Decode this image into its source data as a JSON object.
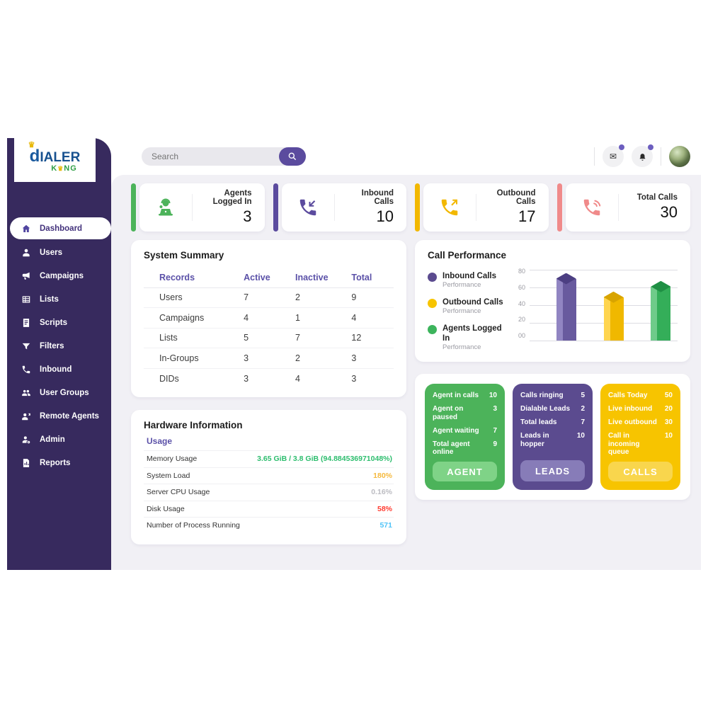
{
  "brand": {
    "d": "d",
    "rest": "IALER",
    "k": "K",
    "ng": "NG",
    "crown": "♛"
  },
  "topbar": {
    "search_placeholder": "Search",
    "icons": {
      "mail": "✉"
    }
  },
  "sidebar": {
    "items": [
      {
        "label": "Dashboard",
        "icon": "home-icon",
        "active": true
      },
      {
        "label": "Users",
        "icon": "user-icon",
        "active": false
      },
      {
        "label": "Campaigns",
        "icon": "megaphone-icon",
        "active": false
      },
      {
        "label": "Lists",
        "icon": "list-icon",
        "active": false
      },
      {
        "label": "Scripts",
        "icon": "script-icon",
        "active": false
      },
      {
        "label": "Filters",
        "icon": "filter-icon",
        "active": false
      },
      {
        "label": "Inbound",
        "icon": "phone-icon",
        "active": false
      },
      {
        "label": "User Groups",
        "icon": "users-group-icon",
        "active": false
      },
      {
        "label": "Remote Agents",
        "icon": "remote-agent-icon",
        "active": false
      },
      {
        "label": "Admin",
        "icon": "admin-icon",
        "active": false
      },
      {
        "label": "Reports",
        "icon": "report-icon",
        "active": false
      }
    ]
  },
  "stats": [
    {
      "label": "Agents Logged In",
      "value": "3",
      "accent": "#4cb35a",
      "icon": "agent-laptop-icon"
    },
    {
      "label": "Inbound Calls",
      "value": "10",
      "accent": "#5b4b9e",
      "icon": "phone-inbound-icon"
    },
    {
      "label": "Outbound Calls",
      "value": "17",
      "accent": "#f2b800",
      "icon": "phone-outbound-icon"
    },
    {
      "label": "Total Calls",
      "value": "30",
      "accent": "#f08a8a",
      "icon": "phone-ringing-icon"
    }
  ],
  "system_summary": {
    "title": "System Summary",
    "headers": [
      "Records",
      "Active",
      "Inactive",
      "Total"
    ],
    "rows": [
      [
        "Users",
        "7",
        "2",
        "9"
      ],
      [
        "Campaigns",
        "4",
        "1",
        "4"
      ],
      [
        "Lists",
        "5",
        "7",
        "12"
      ],
      [
        "In-Groups",
        "3",
        "2",
        "3"
      ],
      [
        "DIDs",
        "3",
        "4",
        "3"
      ]
    ]
  },
  "call_performance": {
    "title": "Call Performance"
  },
  "chart_data": {
    "type": "bar",
    "title": "Call Performance",
    "categories": [
      "Inbound Calls",
      "Outbound Calls",
      "Agents Logged In"
    ],
    "values": [
      70,
      49,
      61
    ],
    "colors": [
      "#685a9e",
      "#f0b800",
      "#34ae59"
    ],
    "ylim": [
      0,
      80
    ],
    "yticklabels": [
      "80",
      "60",
      "40",
      "20",
      "00"
    ],
    "grid": true,
    "legend_position": "left",
    "legend": [
      {
        "label": "Inbound Calls",
        "sub": "Performance",
        "color": "#5b4b8f"
      },
      {
        "label": "Outbound Calls",
        "sub": "Performance",
        "color": "#f7c400"
      },
      {
        "label": "Agents Logged In",
        "sub": "Performance",
        "color": "#3cb45c"
      }
    ]
  },
  "hardware": {
    "title": "Hardware Information",
    "section": "Usage",
    "rows": [
      {
        "label": "Memory Usage",
        "value": "3.65 GiB / 3.8 GiB (94.884536971048%)",
        "color": "#2dbd6e"
      },
      {
        "label": "System Load",
        "value": "180%",
        "color": "#f5b93e"
      },
      {
        "label": "Server CPU Usage",
        "value": "0.16%",
        "color": "#bcbcc2"
      },
      {
        "label": "Disk Usage",
        "value": "58%",
        "color": "#ff3b30"
      },
      {
        "label": "Number of Process Running",
        "value": "571",
        "color": "#4fc3f7"
      }
    ]
  },
  "panels": [
    {
      "button": "AGENT",
      "color": "#4cb35a",
      "rows": [
        {
          "label": "Agent in calls",
          "value": "10"
        },
        {
          "label": "Agent on paused",
          "value": "3"
        },
        {
          "label": "Agent waiting",
          "value": "7"
        },
        {
          "label": "Total agent online",
          "value": "9"
        }
      ]
    },
    {
      "button": "LEADS",
      "color": "#5b4b8f",
      "rows": [
        {
          "label": "Calls ringing",
          "value": "5"
        },
        {
          "label": "Dialable Leads",
          "value": "2"
        },
        {
          "label": "Total leads",
          "value": "7"
        },
        {
          "label": "Leads in hopper",
          "value": "10"
        }
      ]
    },
    {
      "button": "CALLS",
      "color": "#f7c400",
      "rows": [
        {
          "label": "Calls Today",
          "value": "50"
        },
        {
          "label": "Live inbound",
          "value": "20"
        },
        {
          "label": "Live outbound",
          "value": "30"
        },
        {
          "label": "Call in incoming queue",
          "value": "10"
        }
      ]
    }
  ]
}
